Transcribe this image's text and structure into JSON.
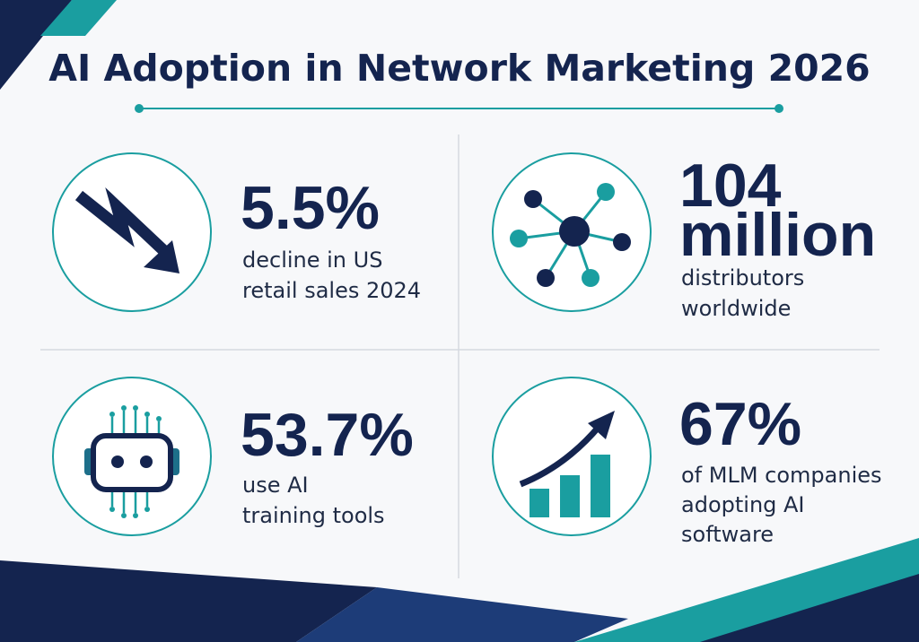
{
  "header": {
    "title": "AI Adoption in Network Marketing 2026"
  },
  "stats": [
    {
      "value": [
        "5.5%"
      ],
      "description": [
        "decline in US",
        "retail sales 2024"
      ]
    },
    {
      "value": [
        "104",
        "million"
      ],
      "description": [
        "distributors",
        "worldwide"
      ]
    },
    {
      "value": [
        "53.7%"
      ],
      "description": [
        "use AI",
        "training tools"
      ]
    },
    {
      "value": [
        "67%"
      ],
      "description": [
        "of MLM companies",
        "adopting AI",
        "software"
      ]
    }
  ]
}
